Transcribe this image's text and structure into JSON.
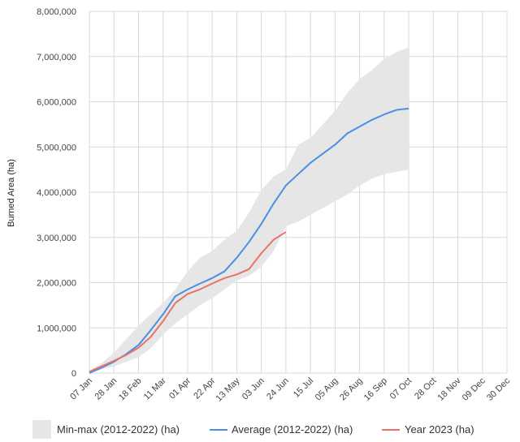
{
  "chart_data": {
    "type": "line",
    "title": "",
    "xlabel": "",
    "ylabel": "Burned Area (ha)",
    "ylim": [
      0,
      8000000
    ],
    "y_ticks": [
      0,
      1000000,
      2000000,
      3000000,
      4000000,
      5000000,
      6000000,
      7000000,
      8000000
    ],
    "y_tick_labels": [
      "0",
      "1,000,000",
      "2,000,000",
      "3,000,000",
      "4,000,000",
      "5,000,000",
      "6,000,000",
      "7,000,000",
      "8,000,000"
    ],
    "x_tick_labels": [
      "07 Jan",
      "28 Jan",
      "18 Feb",
      "11 Mar",
      "01 Apr",
      "22 Apr",
      "13 May",
      "03 Jun",
      "24 Jun",
      "15 Jul",
      "05 Aug",
      "26 Aug",
      "16 Sep",
      "07 Oct",
      "28 Oct",
      "18 Nov",
      "09 Dec",
      "30 Dec"
    ],
    "grid": true,
    "legend_position": "bottom",
    "series": [
      {
        "name": "Min-max (2012-2022) (ha)",
        "kind": "band",
        "color": "#e6e6e6",
        "upper": [
          50000,
          220000,
          450000,
          750000,
          1050000,
          1300000,
          1550000,
          1850000,
          2250000,
          2550000,
          2700000,
          2950000,
          3150000,
          3550000,
          4050000,
          4350000,
          4500000,
          5050000,
          5200000,
          5500000,
          5800000,
          6200000,
          6500000,
          6700000,
          6950000,
          7100000,
          7200000
        ],
        "lower": [
          0,
          80000,
          150000,
          250000,
          350000,
          550000,
          850000,
          1100000,
          1300000,
          1500000,
          1650000,
          1850000,
          2050000,
          2150000,
          2350000,
          2700000,
          3250000,
          3350000,
          3500000,
          3650000,
          3800000,
          3950000,
          4150000,
          4300000,
          4400000,
          4450000,
          4500000
        ]
      },
      {
        "name": "Average (2012-2022) (ha)",
        "kind": "line",
        "color": "#4a90e2",
        "values": [
          0,
          120000,
          250000,
          420000,
          620000,
          950000,
          1300000,
          1700000,
          1850000,
          1980000,
          2100000,
          2250000,
          2550000,
          2900000,
          3300000,
          3750000,
          4150000,
          4400000,
          4650000,
          4850000,
          5050000,
          5300000,
          5450000,
          5600000,
          5720000,
          5820000,
          5850000
        ]
      },
      {
        "name": "Year 2023 (ha)",
        "kind": "line",
        "color": "#e8726a",
        "values": [
          30000,
          150000,
          270000,
          400000,
          560000,
          800000,
          1150000,
          1550000,
          1750000,
          1850000,
          1980000,
          2100000,
          2180000,
          2300000,
          2650000,
          2950000,
          3120000
        ]
      }
    ],
    "x_positions": [
      0,
      0.5,
      1,
      1.5,
      2,
      2.5,
      3,
      3.5,
      4,
      4.5,
      5,
      5.5,
      6,
      6.5,
      7,
      7.5,
      8,
      8.5,
      9,
      9.5,
      10,
      10.5,
      11,
      11.5,
      12,
      12.5,
      13
    ],
    "x_positions_2023": [
      0,
      0.5,
      1,
      1.5,
      2,
      2.5,
      3,
      3.5,
      4,
      4.5,
      5,
      5.5,
      6,
      6.5,
      7,
      7.5,
      8
    ]
  },
  "legend": {
    "band_label": "Min-max (2012-2022) (ha)",
    "avg_label": "Average (2012-2022) (ha)",
    "year_label": "Year 2023 (ha)"
  }
}
